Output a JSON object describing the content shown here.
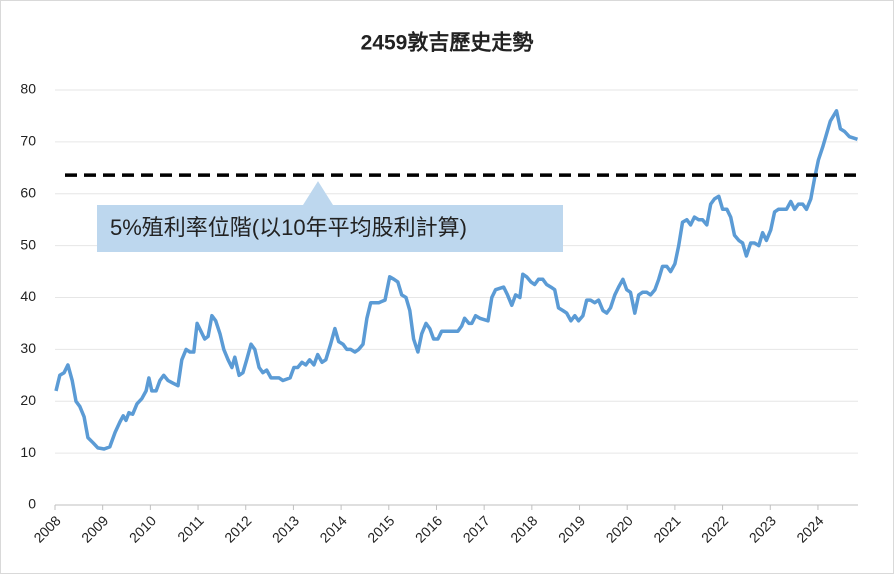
{
  "chart_data": {
    "type": "line",
    "title": "2459敦吉歷史走勢",
    "x": [
      2008.02,
      2008.1,
      2008.19,
      2008.27,
      2008.36,
      2008.44,
      2008.52,
      2008.61,
      2008.69,
      2008.8,
      2008.9,
      2009.03,
      2009.15,
      2009.26,
      2009.36,
      2009.43,
      2009.49,
      2009.55,
      2009.63,
      2009.72,
      2009.82,
      2009.91,
      2009.97,
      2010.03,
      2010.12,
      2010.2,
      2010.28,
      2010.37,
      2010.47,
      2010.58,
      2010.66,
      2010.75,
      2010.83,
      2010.91,
      2010.98,
      2011.06,
      2011.14,
      2011.21,
      2011.29,
      2011.37,
      2011.46,
      2011.54,
      2011.63,
      2011.71,
      2011.77,
      2011.86,
      2011.94,
      2012.02,
      2012.11,
      2012.19,
      2012.28,
      2012.36,
      2012.44,
      2012.53,
      2012.7,
      2012.78,
      2012.93,
      2013.01,
      2013.09,
      2013.18,
      2013.26,
      2013.34,
      2013.43,
      2013.51,
      2013.6,
      2013.68,
      2013.78,
      2013.87,
      2013.95,
      2014.04,
      2014.12,
      2014.2,
      2014.29,
      2014.37,
      2014.46,
      2014.54,
      2014.62,
      2014.79,
      2014.92,
      2015.02,
      2015.11,
      2015.19,
      2015.27,
      2015.36,
      2015.44,
      2015.52,
      2015.61,
      2015.69,
      2015.78,
      2015.86,
      2015.94,
      2016.03,
      2016.11,
      2016.28,
      2016.45,
      2016.53,
      2016.59,
      2016.68,
      2016.74,
      2016.82,
      2016.91,
      2017.08,
      2017.16,
      2017.24,
      2017.41,
      2017.49,
      2017.58,
      2017.66,
      2017.75,
      2017.81,
      2017.89,
      2017.98,
      2018.06,
      2018.14,
      2018.23,
      2018.31,
      2018.4,
      2018.48,
      2018.56,
      2018.65,
      2018.73,
      2018.82,
      2018.9,
      2018.98,
      2019.07,
      2019.15,
      2019.23,
      2019.32,
      2019.4,
      2019.49,
      2019.57,
      2019.65,
      2019.74,
      2019.82,
      2019.91,
      2019.99,
      2020.07,
      2020.16,
      2020.24,
      2020.32,
      2020.41,
      2020.49,
      2020.58,
      2020.66,
      2020.74,
      2020.83,
      2020.91,
      2021.0,
      2021.08,
      2021.16,
      2021.25,
      2021.33,
      2021.41,
      2021.5,
      2021.58,
      2021.67,
      2021.75,
      2021.83,
      2021.92,
      2022.0,
      2022.09,
      2022.17,
      2022.25,
      2022.34,
      2022.42,
      2022.5,
      2022.59,
      2022.67,
      2022.76,
      2022.84,
      2022.92,
      2023.01,
      2023.09,
      2023.17,
      2023.26,
      2023.34,
      2023.43,
      2023.51,
      2023.59,
      2023.68,
      2023.76,
      2023.85,
      2023.93,
      2024.01,
      2024.1,
      2024.18,
      2024.26,
      2024.39,
      2024.47,
      2024.56,
      2024.66,
      2024.83
    ],
    "series": [
      {
        "name": "2459敦吉",
        "color": "#5b9bd5",
        "values": [
          22,
          25,
          25.5,
          27,
          24,
          20,
          19,
          17,
          13,
          12,
          11,
          10.8,
          11.2,
          14,
          16,
          17.2,
          16.3,
          17.8,
          17.5,
          19.5,
          20.5,
          22,
          24.5,
          22,
          22,
          24,
          25,
          24,
          23.5,
          23,
          28,
          30,
          29.5,
          29.5,
          35,
          33.5,
          32,
          32.5,
          36.5,
          35.5,
          33,
          30,
          28,
          26.5,
          28.5,
          25,
          25.5,
          28,
          31,
          30,
          26.5,
          25.5,
          26,
          24.5,
          24.5,
          24,
          24.5,
          26.5,
          26.5,
          27.5,
          27,
          28,
          27,
          29,
          27.5,
          28,
          31,
          34,
          31.5,
          31,
          30,
          30,
          29.5,
          30,
          31,
          36,
          39,
          39,
          39.5,
          44,
          43.5,
          43,
          40.5,
          40,
          37.5,
          32,
          29.5,
          33,
          35,
          34,
          32,
          32,
          33.5,
          33.5,
          33.5,
          34.5,
          36,
          35,
          35,
          36.5,
          36,
          35.5,
          40,
          41.5,
          42,
          40.5,
          38.5,
          40.5,
          40,
          44.5,
          44,
          43,
          42.5,
          43.5,
          43.5,
          42.5,
          42,
          41.5,
          38,
          37.5,
          37,
          35.5,
          36.5,
          35.5,
          36.5,
          39.5,
          39.5,
          39,
          39.5,
          37.5,
          37,
          38,
          40.5,
          42,
          43.5,
          41.5,
          41,
          37,
          40.5,
          41,
          41,
          40.5,
          41.5,
          43.5,
          46,
          46,
          45,
          46.5,
          50,
          54.5,
          55,
          54,
          55.5,
          55,
          55,
          54,
          58,
          59,
          59.5,
          57,
          57,
          55.5,
          52,
          51,
          50.5,
          48,
          50.5,
          50.5,
          50,
          52.5,
          51,
          53,
          56.5,
          57,
          57,
          57,
          58.5,
          57,
          58,
          58,
          57,
          59,
          63,
          66.5,
          69,
          71.5,
          74,
          76,
          72.5,
          72,
          71,
          70.5
        ]
      }
    ],
    "reference_line": 63.6,
    "annotation": "5%殖利率位階(以10年平均股利計算)",
    "xlim": [
      2008,
      2024.84
    ],
    "xticks": [
      2008,
      2009,
      2010,
      2011,
      2012,
      2013,
      2014,
      2015,
      2016,
      2017,
      2018,
      2019,
      2020,
      2021,
      2022,
      2023,
      2024
    ],
    "ylim": [
      0,
      80
    ],
    "yticks": [
      0,
      10,
      20,
      30,
      40,
      50,
      60,
      70,
      80
    ],
    "grid": true
  }
}
